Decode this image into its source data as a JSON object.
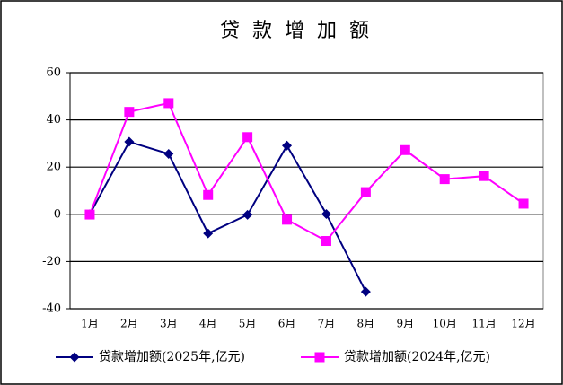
{
  "chart_data": {
    "type": "line",
    "title": "贷款增加额",
    "categories": [
      "1月",
      "2月",
      "3月",
      "4月",
      "5月",
      "6月",
      "7月",
      "8月",
      "9月",
      "10月",
      "11月",
      "12月"
    ],
    "series": [
      {
        "name": "贷款增加额(2025年,亿元)",
        "color": "#000080",
        "marker": "diamond",
        "values": [
          0,
          30.7,
          25.6,
          -8.1,
          -0.2,
          29.1,
          0.1,
          -32.8,
          null,
          null,
          null,
          null
        ]
      },
      {
        "name": "贷款增加额(2024年,亿元)",
        "color": "#ff00ff",
        "marker": "square",
        "values": [
          -0.1,
          43.4,
          47.1,
          8.2,
          32.7,
          -2.3,
          -11.3,
          9.4,
          27.2,
          14.9,
          16.2,
          4.5
        ]
      }
    ],
    "ylim": [
      -40,
      60
    ],
    "yticks": [
      -40,
      -20,
      0,
      20,
      40,
      60
    ],
    "grid": true,
    "legend": "bottom"
  }
}
